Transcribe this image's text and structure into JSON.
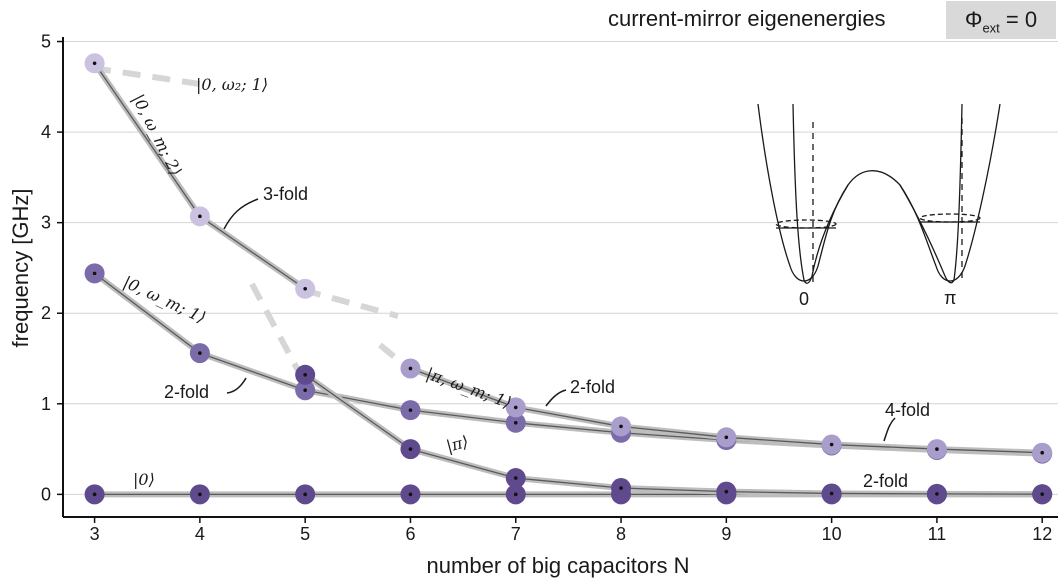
{
  "title": "current-mirror eigenenergies",
  "badge": {
    "symbol": "Φ",
    "sub": "ext",
    "rest": " = 0"
  },
  "chart_data": {
    "type": "line",
    "xlabel": "number of big capacitors N",
    "ylabel": "frequency [GHz]",
    "xlim": [
      2.7,
      12.15
    ],
    "ylim": [
      -0.25,
      5.05
    ],
    "xticks": [
      3,
      4,
      5,
      6,
      7,
      8,
      9,
      10,
      11,
      12
    ],
    "yticks": [
      0,
      1,
      2,
      3,
      4,
      5
    ],
    "grid": "horizontal",
    "series": [
      {
        "name": "|0⟩",
        "color": "#5e4a8c",
        "x": [
          3,
          4,
          5,
          6,
          7,
          8,
          9,
          10,
          11,
          12
        ],
        "y": [
          0,
          0,
          0,
          0,
          0,
          0,
          0,
          0,
          0,
          0
        ]
      },
      {
        "name": "|π⟩",
        "color": "#5e4a8c",
        "x": [
          5,
          6,
          7,
          8,
          9,
          10,
          11,
          12
        ],
        "y": [
          1.32,
          0.5,
          0.18,
          0.07,
          0.03,
          0.01,
          0.005,
          0.002
        ]
      },
      {
        "name": "|0, ω_m; 1⟩",
        "color": "#7b6ba9",
        "x": [
          3,
          4,
          5,
          6,
          7,
          8,
          9,
          10,
          11,
          12
        ],
        "y": [
          2.44,
          1.56,
          1.15,
          0.93,
          0.79,
          0.68,
          0.6,
          0.54,
          0.49,
          0.45
        ]
      },
      {
        "name": "|π, ω_m; 1⟩",
        "color": "#a99dcb",
        "x": [
          6,
          7,
          8,
          9,
          10,
          11,
          12
        ],
        "y": [
          1.39,
          0.96,
          0.75,
          0.63,
          0.55,
          0.5,
          0.46
        ]
      },
      {
        "name": "|0, ω_m; 2⟩",
        "color": "#cac2e0",
        "x": [
          3,
          4,
          5
        ],
        "y": [
          4.76,
          3.07,
          2.27
        ]
      }
    ],
    "annotations": [
      {
        "text": "|0, ω₂; 1⟩"
      },
      {
        "text": "3-fold"
      },
      {
        "text": "2-fold"
      },
      {
        "text": "2-fold"
      },
      {
        "text": "4-fold"
      },
      {
        "text": "2-fold"
      }
    ],
    "inset_labels": [
      "0",
      "π"
    ]
  }
}
